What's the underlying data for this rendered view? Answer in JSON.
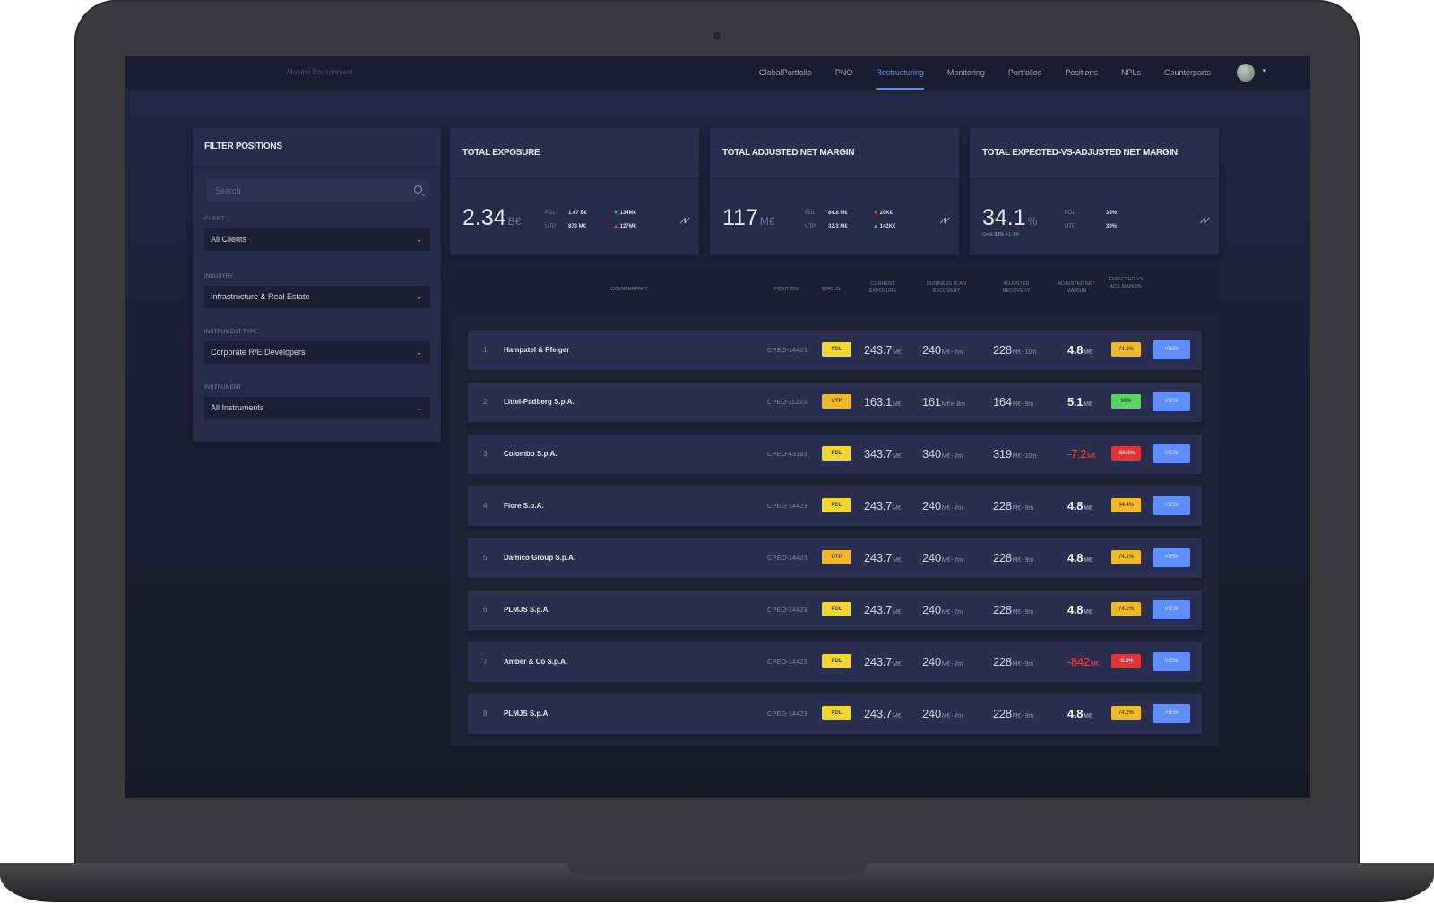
{
  "header": {
    "environment": "Monitor Environment",
    "nav": [
      {
        "label": "GlobalPortfolio",
        "active": false
      },
      {
        "label": "PNO",
        "active": false
      },
      {
        "label": "Restructuring",
        "active": true
      },
      {
        "label": "Monitoring",
        "active": false
      },
      {
        "label": "Portfolios",
        "active": false
      },
      {
        "label": "Positions",
        "active": false
      },
      {
        "label": "NPLs",
        "active": false
      },
      {
        "label": "Counterparts",
        "active": false
      }
    ],
    "user_caret": "▾"
  },
  "filter": {
    "title": "FILTER POSITIONS",
    "search_placeholder": "Search",
    "client": {
      "label": "CLIENT",
      "value": "All Clients"
    },
    "industry": {
      "label": "INDUSTRY",
      "value": "Infrastructure & Real Estate"
    },
    "instrument_type": {
      "label": "INSTRUMENT TYPE",
      "value": "Corporate R/E Developers"
    },
    "instrument": {
      "label": "INSTRUMENT",
      "value": "All Instruments"
    }
  },
  "kpis": [
    {
      "title": "TOTAL EXPOSURE",
      "value": "2.34",
      "unit": "B€",
      "mini": [
        {
          "label": "PDL",
          "value": "1.47 B€",
          "delta": "134M€",
          "dir": "down"
        },
        {
          "label": "UTP",
          "value": "873 M€",
          "delta": "127M€",
          "dir": "up-red"
        }
      ]
    },
    {
      "title": "TOTAL ADJUSTED NET MARGIN",
      "value": "117",
      "unit": "M€",
      "mini": [
        {
          "label": "PDL",
          "value": "84.8 M€",
          "delta": "20K€",
          "dir": "down-red"
        },
        {
          "label": "UTP",
          "value": "32.3 M€",
          "delta": "142K€",
          "dir": "up-green"
        }
      ]
    },
    {
      "title": "TOTAL EXPECTED-VS-ADJUSTED NET MARGIN",
      "value": "34.1",
      "unit": "%",
      "sub_label": "Goal",
      "sub_value": "33%",
      "sub_delta": "+1.1%",
      "mini": [
        {
          "label": "PDL",
          "value": "35%"
        },
        {
          "label": "UTP",
          "value": "30%"
        }
      ]
    }
  ],
  "table": {
    "headers": {
      "counterpart": "COUNTERPART",
      "position": "POSITION",
      "status": "STATUS",
      "current_exposure": "CURRENT EXPOSURE",
      "business_plan_recovery": "BUSINESS PLAN RECOVERY",
      "adjusted_recovery": "ADJUSTED RECOVERY",
      "adjusted_net_margin": "ADJUSTED NET MARGIN",
      "expected_vs_adjusted": "EXPECTED VS ADJ. MARGIN"
    },
    "view_label": "VIEW",
    "rows": [
      {
        "idx": "1",
        "name": "Hampatel & Pfeiger",
        "position": "CPEO-14423",
        "status": "PDL",
        "status_color": "#f1d72f",
        "exposure": "243.7",
        "bp": "240",
        "bp_suffix": "- 7m",
        "adj": "228",
        "adj_suffix": "- 10m",
        "anm": "4.8",
        "anm_neg": false,
        "evam": "74.2%",
        "evam_color": "#f0b92c"
      },
      {
        "idx": "2",
        "name": "Littel-Padberg S.p.A.",
        "position": "CPEO-11223",
        "status": "UTP",
        "status_color": "#f0b92c",
        "exposure": "163.1",
        "bp": "161",
        "bp_suffix": "in 8m",
        "adj": "164",
        "adj_suffix": "- 9m",
        "anm": "5.1",
        "anm_neg": false,
        "evam": "98%",
        "evam_color": "#5bd365"
      },
      {
        "idx": "3",
        "name": "Colombo S.p.A.",
        "position": "CPEO-43153",
        "status": "PDL",
        "status_color": "#f1d72f",
        "exposure": "343.7",
        "bp": "340",
        "bp_suffix": "- 7m",
        "adj": "319",
        "adj_suffix": "- 10m",
        "anm": "-7.2",
        "anm_neg": true,
        "evam": "-88.4%",
        "evam_color": "#e63232"
      },
      {
        "idx": "4",
        "name": "Fiore S.p.A.",
        "position": "CPEO-14423",
        "status": "PDL",
        "status_color": "#f1d72f",
        "exposure": "243.7",
        "bp": "240",
        "bp_suffix": "- 7m",
        "adj": "228",
        "adj_suffix": "- 9m",
        "anm": "4.8",
        "anm_neg": false,
        "evam": "84.4%",
        "evam_color": "#f0b92c"
      },
      {
        "idx": "5",
        "name": "Damico Group S.p.A.",
        "position": "CPEO-14423",
        "status": "UTP",
        "status_color": "#f0b92c",
        "exposure": "243.7",
        "bp": "240",
        "bp_suffix": "- 7m",
        "adj": "228",
        "adj_suffix": "- 9m",
        "anm": "4.8",
        "anm_neg": false,
        "evam": "74.2%",
        "evam_color": "#f0b92c"
      },
      {
        "idx": "6",
        "name": "PLMJS S.p.A.",
        "position": "CPEO-14423",
        "status": "PDL",
        "status_color": "#f1d72f",
        "exposure": "243.7",
        "bp": "240",
        "bp_suffix": "- 7m",
        "adj": "228",
        "adj_suffix": "- 9m",
        "anm": "4.8",
        "anm_neg": false,
        "evam": "74.2%",
        "evam_color": "#f0b92c"
      },
      {
        "idx": "7",
        "name": "Amber & Co S.p.A.",
        "position": "CPEO-14423",
        "status": "PDL",
        "status_color": "#f1d72f",
        "exposure": "243.7",
        "bp": "240",
        "bp_suffix": "- 7m",
        "adj": "228",
        "adj_suffix": "- 9m",
        "anm": "-842",
        "anm_neg": true,
        "evam": "-6.5%",
        "evam_color": "#e63232"
      },
      {
        "idx": "8",
        "name": "PLMJS S.p.A.",
        "position": "CPEO-14423",
        "status": "PDL",
        "status_color": "#f1d72f",
        "exposure": "243.7",
        "bp": "240",
        "bp_suffix": "- 7m",
        "adj": "228",
        "adj_suffix": "- 9m",
        "anm": "4.8",
        "anm_neg": false,
        "evam": "74.2%",
        "evam_color": "#f0b92c"
      }
    ],
    "unit": "M€"
  }
}
